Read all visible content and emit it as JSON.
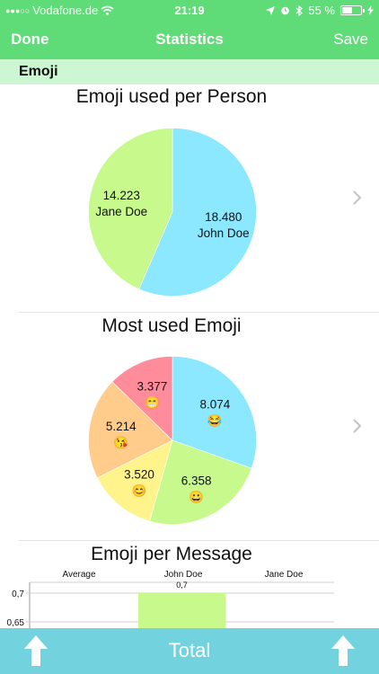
{
  "status_bar": {
    "carrier": "Vodafone.de",
    "time": "21:19",
    "battery": "55 %",
    "battery_level": 0.55
  },
  "nav": {
    "done": "Done",
    "title": "Statistics",
    "save": "Save"
  },
  "section": {
    "title": "Emoji"
  },
  "charts": {
    "per_person_title": "Emoji used per Person",
    "most_used_title": "Most used Emoji",
    "per_message_title": "Emoji per Message"
  },
  "toolbar": {
    "total": "Total"
  },
  "colors": {
    "green": "#5fdc77",
    "light_green": "#ccf7d2",
    "teal": "#72d3df"
  },
  "chart_data": [
    {
      "type": "pie",
      "title": "Emoji used per Person",
      "slices": [
        {
          "label": "John Doe",
          "value": 18480,
          "display": "18.480",
          "color": "#8be8ff"
        },
        {
          "label": "Jane Doe",
          "value": 14223,
          "display": "14.223",
          "color": "#c7f98c"
        }
      ]
    },
    {
      "type": "pie",
      "title": "Most used Emoji",
      "slices": [
        {
          "emoji": "😂",
          "value": 8074,
          "display": "8.074",
          "color": "#8be8ff"
        },
        {
          "emoji": "😀",
          "value": 6358,
          "display": "6.358",
          "color": "#c7f98c"
        },
        {
          "emoji": "😊",
          "value": 3520,
          "display": "3.520",
          "color": "#fff48c"
        },
        {
          "emoji": "😘",
          "value": 5214,
          "display": "5.214",
          "color": "#ffcc8c"
        },
        {
          "emoji": "😁",
          "value": 3377,
          "display": "3.377",
          "color": "#ff8c9a"
        }
      ]
    },
    {
      "type": "bar",
      "title": "Emoji per Message",
      "legend": [
        "Average",
        "John Doe",
        "Jane Doe"
      ],
      "y_ticks": [
        "0,7",
        "0,65"
      ],
      "bars": [
        {
          "category": "John Doe",
          "value": 0.7,
          "display": "0,7",
          "color": "#c7f98c"
        }
      ]
    }
  ]
}
